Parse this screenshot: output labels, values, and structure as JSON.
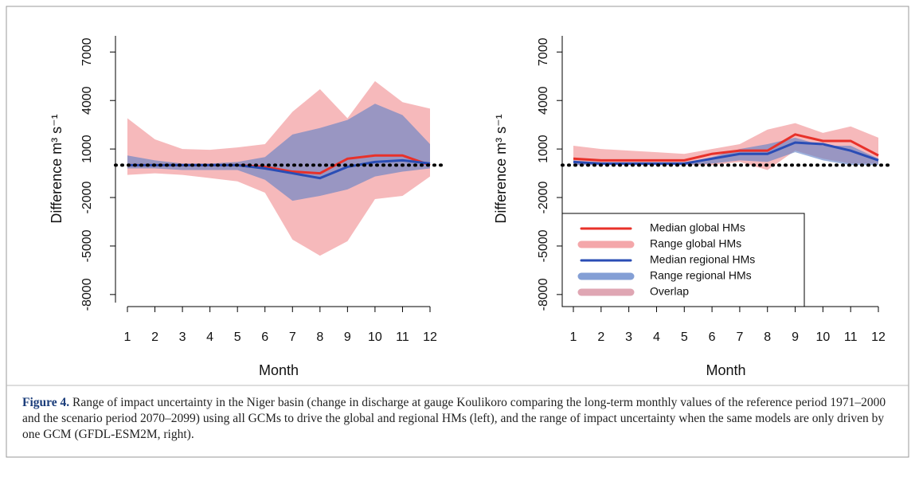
{
  "chart_data": [
    {
      "type": "band-line",
      "ylabel": "Difference m³ s⁻¹",
      "xlabel": "Month",
      "x": [
        1,
        2,
        3,
        4,
        5,
        6,
        7,
        8,
        9,
        10,
        11,
        12
      ],
      "xlim": [
        1,
        12
      ],
      "ylim": [
        -8500,
        8000
      ],
      "yticks": [
        7000,
        4000,
        1000,
        -2000,
        -5000,
        -8000
      ],
      "reference_line": 0,
      "legend": false,
      "series": [
        {
          "kind": "line",
          "color": "#e8312a",
          "values": [
            0,
            0,
            0,
            0,
            0,
            -100,
            -400,
            -500,
            400,
            600,
            600,
            0
          ]
        },
        {
          "kind": "band",
          "color": "#f08a8e",
          "upper": [
            2900,
            1600,
            1000,
            950,
            1100,
            1300,
            3300,
            4700,
            2900,
            5200,
            3900,
            3500
          ],
          "lower": [
            -600,
            -500,
            -600,
            -800,
            -1000,
            -1700,
            -4600,
            -5600,
            -4700,
            -2100,
            -1900,
            -700
          ]
        },
        {
          "kind": "line",
          "color": "#2a4db5",
          "values": [
            0,
            0,
            0,
            0,
            0,
            -200,
            -500,
            -800,
            -100,
            200,
            300,
            100
          ]
        },
        {
          "kind": "band",
          "color": "#5b7fc7",
          "upper": [
            600,
            300,
            100,
            100,
            200,
            500,
            1900,
            2300,
            2800,
            3800,
            3100,
            1300
          ],
          "lower": [
            -200,
            -200,
            -300,
            -300,
            -300,
            -900,
            -2200,
            -1900,
            -1500,
            -700,
            -400,
            -200
          ]
        }
      ]
    },
    {
      "type": "band-line",
      "ylabel": "Difference m³ s⁻¹",
      "xlabel": "Month",
      "x": [
        1,
        2,
        3,
        4,
        5,
        6,
        7,
        8,
        9,
        10,
        11,
        12
      ],
      "xlim": [
        1,
        12
      ],
      "ylim": [
        -8500,
        8000
      ],
      "yticks": [
        7000,
        4000,
        1000,
        -2000,
        -5000,
        -8000
      ],
      "reference_line": 0,
      "legend": true,
      "series": [
        {
          "kind": "line",
          "name": "Median global HMs",
          "color": "#e8312a",
          "values": [
            400,
            300,
            300,
            300,
            300,
            700,
            900,
            900,
            1900,
            1500,
            1500,
            600
          ]
        },
        {
          "kind": "band",
          "name": "Range global HMs",
          "color": "#f08a8e",
          "upper": [
            1200,
            1000,
            900,
            800,
            700,
            1000,
            1300,
            2200,
            2600,
            2000,
            2400,
            1700
          ],
          "lower": [
            0,
            0,
            0,
            0,
            0,
            0,
            200,
            -300,
            900,
            400,
            100,
            100
          ]
        },
        {
          "kind": "line",
          "name": "Median regional HMs",
          "color": "#2a4db5",
          "values": [
            200,
            100,
            100,
            100,
            100,
            400,
            700,
            700,
            1400,
            1300,
            900,
            300
          ]
        },
        {
          "kind": "band",
          "name": "Range regional HMs",
          "color": "#5b7fc7",
          "upper": [
            300,
            100,
            100,
            100,
            100,
            500,
            1000,
            1300,
            1700,
            1200,
            1200,
            400
          ],
          "lower": [
            0,
            0,
            0,
            0,
            0,
            100,
            300,
            200,
            800,
            300,
            0,
            0
          ]
        }
      ],
      "overlap": {
        "name": "Overlap",
        "color": "#d4889a"
      }
    }
  ],
  "caption": {
    "label": "Figure 4.",
    "text": "Range of impact uncertainty in the Niger basin (change in discharge at gauge Koulikoro comparing the long-term monthly values of the reference period 1971–2000 and the scenario period 2070–2099) using all GCMs to drive the global and regional HMs (left), and the range of impact uncertainty when the same models are only driven by one GCM (GFDL-ESM2M, right)."
  }
}
